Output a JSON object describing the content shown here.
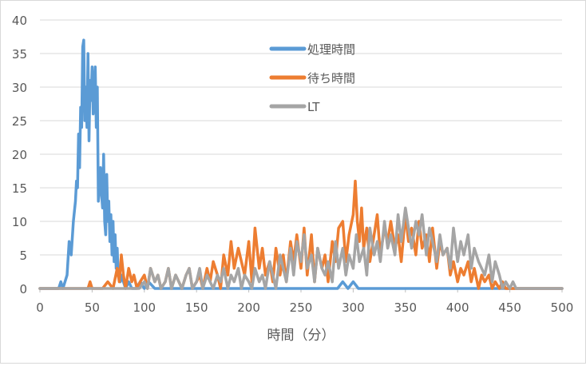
{
  "chart_data": {
    "type": "line",
    "title": "",
    "xlabel": "時間（分）",
    "ylabel": "",
    "xlim": [
      0,
      500
    ],
    "ylim": [
      0,
      40
    ],
    "x_ticks": [
      0,
      50,
      100,
      150,
      200,
      250,
      300,
      350,
      400,
      450,
      500
    ],
    "y_ticks": [
      0,
      5,
      10,
      15,
      20,
      25,
      30,
      35,
      40
    ],
    "grid": "horizontal",
    "legend_position": "top-center",
    "series": [
      {
        "name": "処理時間",
        "color": "#5b9bd5",
        "x": [
          0,
          18,
          20,
          22,
          24,
          26,
          28,
          30,
          32,
          34,
          35,
          36,
          37,
          38,
          39,
          40,
          41,
          42,
          43,
          44,
          45,
          46,
          47,
          48,
          49,
          50,
          51,
          52,
          53,
          54,
          55,
          56,
          57,
          58,
          59,
          60,
          61,
          62,
          63,
          64,
          65,
          66,
          67,
          68,
          69,
          70,
          71,
          72,
          73,
          74,
          75,
          76,
          77,
          78,
          80,
          82,
          85,
          88,
          92,
          96,
          100,
          104,
          110,
          120,
          140,
          160,
          180,
          200,
          220,
          240,
          260,
          280,
          285,
          290,
          295,
          300,
          305,
          310,
          500
        ],
        "y": [
          0,
          0,
          1,
          0,
          1,
          2,
          7,
          5,
          10,
          13,
          16,
          15,
          23,
          18,
          27,
          24,
          36,
          37,
          25,
          30,
          24,
          35,
          22,
          31,
          28,
          33,
          26,
          30,
          33,
          24,
          30,
          13,
          15,
          18,
          14,
          12,
          20,
          10,
          8,
          17,
          10,
          13,
          7,
          11,
          5,
          10,
          4,
          8,
          3,
          6,
          2,
          3,
          1,
          2,
          1,
          0,
          1,
          0,
          0,
          1,
          0,
          1,
          0,
          0,
          0,
          0,
          0,
          0,
          0,
          0,
          0,
          0,
          0,
          1,
          0,
          1,
          0,
          0,
          0
        ]
      },
      {
        "name": "待ち時間",
        "color": "#ed7d31",
        "x": [
          0,
          46,
          48,
          50,
          55,
          60,
          65,
          70,
          74,
          76,
          78,
          80,
          82,
          85,
          88,
          90,
          93,
          96,
          100,
          103,
          106,
          110,
          113,
          116,
          120,
          123,
          126,
          130,
          133,
          136,
          140,
          143,
          146,
          150,
          153,
          156,
          160,
          163,
          166,
          170,
          173,
          176,
          180,
          183,
          186,
          190,
          193,
          196,
          200,
          203,
          206,
          210,
          213,
          216,
          220,
          223,
          226,
          230,
          233,
          236,
          240,
          243,
          246,
          250,
          253,
          256,
          260,
          263,
          266,
          270,
          273,
          276,
          280,
          283,
          286,
          290,
          293,
          296,
          300,
          302,
          304,
          306,
          308,
          310,
          313,
          316,
          320,
          323,
          326,
          330,
          333,
          336,
          340,
          343,
          346,
          350,
          353,
          356,
          360,
          363,
          366,
          370,
          373,
          376,
          380,
          383,
          386,
          390,
          393,
          396,
          400,
          403,
          406,
          410,
          413,
          416,
          420,
          423,
          426,
          430,
          433,
          436,
          440,
          443,
          446,
          450,
          455,
          460,
          500
        ],
        "y": [
          0,
          0,
          1,
          0,
          0,
          0,
          1,
          0,
          3,
          1,
          5,
          2,
          0,
          3,
          1,
          2,
          0,
          1,
          2,
          0,
          3,
          1,
          2,
          0,
          1,
          3,
          0,
          2,
          1,
          0,
          2,
          3,
          0,
          1,
          2,
          0,
          3,
          1,
          4,
          2,
          0,
          5,
          2,
          7,
          3,
          6,
          4,
          2,
          7,
          1,
          9,
          3,
          6,
          2,
          4,
          1,
          6,
          2,
          5,
          1,
          7,
          4,
          8,
          3,
          9,
          2,
          8,
          1,
          6,
          3,
          5,
          1,
          7,
          4,
          9,
          10,
          4,
          8,
          11,
          16,
          10,
          7,
          12,
          6,
          9,
          4,
          8,
          11,
          5,
          9,
          7,
          10,
          6,
          8,
          4,
          11,
          7,
          9,
          5,
          10,
          6,
          8,
          4,
          9,
          3,
          7,
          5,
          6,
          2,
          4,
          1,
          3,
          2,
          4,
          1,
          3,
          0,
          2,
          1,
          2,
          0,
          1,
          0,
          1,
          0,
          0,
          0,
          0,
          0
        ]
      },
      {
        "name": "LT",
        "color": "#a5a5a5",
        "x": [
          0,
          95,
          100,
          103,
          106,
          110,
          113,
          116,
          120,
          123,
          126,
          130,
          133,
          136,
          140,
          143,
          146,
          150,
          153,
          156,
          160,
          163,
          166,
          170,
          173,
          176,
          180,
          183,
          186,
          190,
          193,
          196,
          200,
          203,
          206,
          210,
          213,
          216,
          220,
          223,
          226,
          230,
          233,
          236,
          240,
          243,
          246,
          250,
          253,
          256,
          260,
          263,
          266,
          270,
          273,
          276,
          280,
          283,
          286,
          290,
          293,
          296,
          300,
          303,
          306,
          310,
          313,
          316,
          320,
          323,
          326,
          330,
          333,
          336,
          340,
          343,
          346,
          350,
          353,
          356,
          360,
          363,
          366,
          370,
          373,
          376,
          380,
          383,
          386,
          390,
          393,
          396,
          400,
          403,
          406,
          410,
          413,
          416,
          420,
          423,
          426,
          430,
          433,
          436,
          440,
          443,
          446,
          450,
          453,
          456,
          460,
          500
        ],
        "y": [
          0,
          0,
          1,
          0,
          3,
          1,
          2,
          0,
          1,
          3,
          0,
          2,
          1,
          0,
          2,
          3,
          0,
          1,
          3,
          0,
          2,
          1,
          0,
          2,
          1,
          3,
          0,
          2,
          1,
          3,
          0,
          2,
          1,
          0,
          3,
          1,
          2,
          0,
          4,
          2,
          0,
          5,
          3,
          1,
          6,
          2,
          7,
          4,
          8,
          3,
          5,
          1,
          6,
          3,
          2,
          4,
          1,
          7,
          3,
          6,
          2,
          5,
          3,
          8,
          4,
          6,
          2,
          9,
          5,
          7,
          4,
          10,
          6,
          8,
          5,
          11,
          7,
          12,
          9,
          6,
          10,
          8,
          11,
          5,
          9,
          7,
          4,
          8,
          5,
          6,
          3,
          9,
          4,
          7,
          5,
          8,
          3,
          6,
          4,
          3,
          2,
          5,
          1,
          4,
          2,
          0,
          1,
          0,
          1,
          0,
          0,
          0
        ]
      }
    ]
  }
}
